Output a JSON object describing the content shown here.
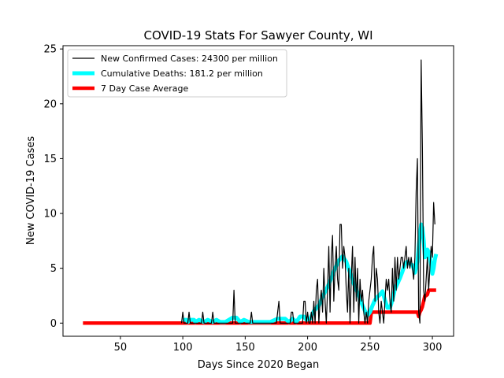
{
  "chart_data": {
    "type": "line",
    "title": "COVID-19 Stats For Sawyer County, WI",
    "xlabel": "Days Since 2020 Began",
    "ylabel": "New COVID-19 Cases",
    "xlim": [
      4,
      317
    ],
    "ylim": [
      -1.2,
      25.3
    ],
    "x_ticks": [
      50,
      100,
      150,
      200,
      250,
      300
    ],
    "y_ticks": [
      0,
      5,
      10,
      15,
      20,
      25
    ],
    "grid": false,
    "legend_position": "top-left",
    "series": [
      {
        "name": "New Confirmed Cases: 24300 per million",
        "color": "#000000",
        "points": [
          [
            99,
            0
          ],
          [
            100,
            1
          ],
          [
            101,
            0
          ],
          [
            104,
            0
          ],
          [
            105,
            1
          ],
          [
            106,
            0
          ],
          [
            115,
            0
          ],
          [
            116,
            1
          ],
          [
            117,
            0
          ],
          [
            123,
            0
          ],
          [
            124,
            1
          ],
          [
            125,
            0
          ],
          [
            140,
            0
          ],
          [
            141,
            3
          ],
          [
            142,
            0
          ],
          [
            154,
            0
          ],
          [
            155,
            1
          ],
          [
            156,
            0
          ],
          [
            175,
            0
          ],
          [
            176,
            1
          ],
          [
            177,
            2
          ],
          [
            178,
            0
          ],
          [
            186,
            0
          ],
          [
            187,
            1
          ],
          [
            188,
            1
          ],
          [
            189,
            0
          ],
          [
            196,
            0
          ],
          [
            197,
            2
          ],
          [
            198,
            2
          ],
          [
            199,
            0
          ],
          [
            200,
            1
          ],
          [
            201,
            0
          ],
          [
            202,
            0
          ],
          [
            203,
            1
          ],
          [
            204,
            0
          ],
          [
            205,
            2
          ],
          [
            206,
            0
          ],
          [
            207,
            3
          ],
          [
            208,
            4
          ],
          [
            209,
            0
          ],
          [
            210,
            2
          ],
          [
            211,
            3
          ],
          [
            212,
            1
          ],
          [
            213,
            5
          ],
          [
            214,
            2
          ],
          [
            215,
            0
          ],
          [
            216,
            3
          ],
          [
            217,
            7
          ],
          [
            218,
            1
          ],
          [
            219,
            6
          ],
          [
            220,
            8
          ],
          [
            221,
            2
          ],
          [
            222,
            5
          ],
          [
            223,
            7
          ],
          [
            224,
            4
          ],
          [
            225,
            3
          ],
          [
            226,
            9
          ],
          [
            227,
            9
          ],
          [
            228,
            5
          ],
          [
            229,
            7
          ],
          [
            230,
            6
          ],
          [
            231,
            3
          ],
          [
            232,
            1
          ],
          [
            233,
            5
          ],
          [
            234,
            0
          ],
          [
            235,
            4
          ],
          [
            236,
            7
          ],
          [
            237,
            1
          ],
          [
            238,
            6
          ],
          [
            239,
            2
          ],
          [
            240,
            5
          ],
          [
            241,
            0
          ],
          [
            242,
            4
          ],
          [
            243,
            2
          ],
          [
            244,
            3
          ],
          [
            245,
            1
          ],
          [
            246,
            0
          ],
          [
            247,
            1
          ],
          [
            248,
            0
          ],
          [
            249,
            2
          ],
          [
            250,
            3
          ],
          [
            251,
            4
          ],
          [
            252,
            6
          ],
          [
            253,
            7
          ],
          [
            254,
            2
          ],
          [
            255,
            5
          ],
          [
            256,
            4
          ],
          [
            257,
            1
          ],
          [
            258,
            0
          ],
          [
            259,
            2
          ],
          [
            260,
            1
          ],
          [
            261,
            0
          ],
          [
            262,
            2
          ],
          [
            263,
            4
          ],
          [
            264,
            3
          ],
          [
            265,
            4
          ],
          [
            266,
            2
          ],
          [
            267,
            1
          ],
          [
            268,
            5
          ],
          [
            269,
            2
          ],
          [
            270,
            6
          ],
          [
            271,
            3
          ],
          [
            272,
            6
          ],
          [
            273,
            4
          ],
          [
            274,
            5
          ],
          [
            275,
            6
          ],
          [
            276,
            6
          ],
          [
            277,
            5
          ],
          [
            278,
            6
          ],
          [
            279,
            7
          ],
          [
            280,
            5
          ],
          [
            281,
            6
          ],
          [
            282,
            5
          ],
          [
            283,
            6
          ],
          [
            284,
            5
          ],
          [
            285,
            4
          ],
          [
            286,
            6
          ],
          [
            287,
            12
          ],
          [
            288,
            15
          ],
          [
            289,
            1
          ],
          [
            290,
            0
          ],
          [
            291,
            24
          ],
          [
            292,
            16
          ],
          [
            293,
            3
          ],
          [
            294,
            2
          ],
          [
            295,
            4
          ],
          [
            296,
            6
          ],
          [
            297,
            3
          ],
          [
            298,
            5
          ],
          [
            299,
            7
          ],
          [
            300,
            6
          ],
          [
            301,
            11
          ],
          [
            302,
            9
          ]
        ]
      },
      {
        "name": "Cumulative Deaths: 181.2 per million",
        "color": "#00ffff",
        "points": [
          [
            100,
            0.3
          ],
          [
            103,
            0.3
          ],
          [
            104,
            0.1
          ],
          [
            106,
            0.3
          ],
          [
            109,
            0.3
          ],
          [
            110,
            0.1
          ],
          [
            113,
            0.3
          ],
          [
            117,
            0.1
          ],
          [
            120,
            0.3
          ],
          [
            124,
            0.1
          ],
          [
            127,
            0.3
          ],
          [
            130,
            0.1
          ],
          [
            134,
            0.1
          ],
          [
            140,
            0.5
          ],
          [
            143,
            0.5
          ],
          [
            146,
            0.1
          ],
          [
            149,
            0.3
          ],
          [
            153,
            0.1
          ],
          [
            160,
            0.1
          ],
          [
            170,
            0.1
          ],
          [
            176,
            0.4
          ],
          [
            182,
            0.4
          ],
          [
            185,
            0.1
          ],
          [
            188,
            0.4
          ],
          [
            191,
            0.1
          ],
          [
            194,
            0.6
          ],
          [
            197,
            0.6
          ],
          [
            199,
            0.3
          ],
          [
            202,
            0.4
          ],
          [
            205,
            1.1
          ],
          [
            209,
            1.6
          ],
          [
            212,
            2.4
          ],
          [
            216,
            3.3
          ],
          [
            219,
            4.1
          ],
          [
            222,
            5.0
          ],
          [
            225,
            5.7
          ],
          [
            228,
            6.1
          ],
          [
            231,
            5.6
          ],
          [
            234,
            4.6
          ],
          [
            237,
            3.6
          ],
          [
            240,
            2.8
          ],
          [
            243,
            1.9
          ],
          [
            246,
            1.1
          ],
          [
            248,
            0.7
          ],
          [
            250,
            1.0
          ],
          [
            252,
            1.6
          ],
          [
            254,
            2.1
          ],
          [
            256,
            2.4
          ],
          [
            258,
            2.6
          ],
          [
            260,
            2.9
          ],
          [
            262,
            2.1
          ],
          [
            264,
            1.4
          ],
          [
            266,
            1.4
          ],
          [
            268,
            2.1
          ],
          [
            270,
            3.1
          ],
          [
            272,
            3.6
          ],
          [
            274,
            4.1
          ],
          [
            276,
            4.7
          ],
          [
            278,
            5.4
          ],
          [
            280,
            5.6
          ],
          [
            282,
            5.4
          ],
          [
            284,
            5.3
          ],
          [
            286,
            4.6
          ],
          [
            288,
            5.6
          ],
          [
            290,
            8.1
          ],
          [
            291,
            9.0
          ],
          [
            292,
            8.7
          ],
          [
            293,
            7.6
          ],
          [
            294,
            6.0
          ],
          [
            295,
            6.1
          ],
          [
            296,
            6.7
          ],
          [
            297,
            6.5
          ],
          [
            298,
            6.0
          ],
          [
            299,
            5.3
          ],
          [
            300,
            4.5
          ],
          [
            301,
            5.0
          ],
          [
            302,
            5.8
          ],
          [
            303,
            6.3
          ]
        ]
      },
      {
        "name": "7 Day Case Average",
        "color": "#ff0000",
        "points": [
          [
            20,
            0
          ],
          [
            250,
            0
          ],
          [
            251,
            0.9
          ],
          [
            252,
            1.0
          ],
          [
            287,
            1.0
          ],
          [
            288,
            1.0
          ],
          [
            289,
            0.6
          ],
          [
            290,
            1.0
          ],
          [
            291,
            1.2
          ],
          [
            292,
            1.5
          ],
          [
            293,
            2.0
          ],
          [
            294,
            2.5
          ],
          [
            295,
            2.5
          ],
          [
            296,
            2.6
          ],
          [
            297,
            3.0
          ],
          [
            303,
            3.0
          ]
        ]
      }
    ]
  }
}
